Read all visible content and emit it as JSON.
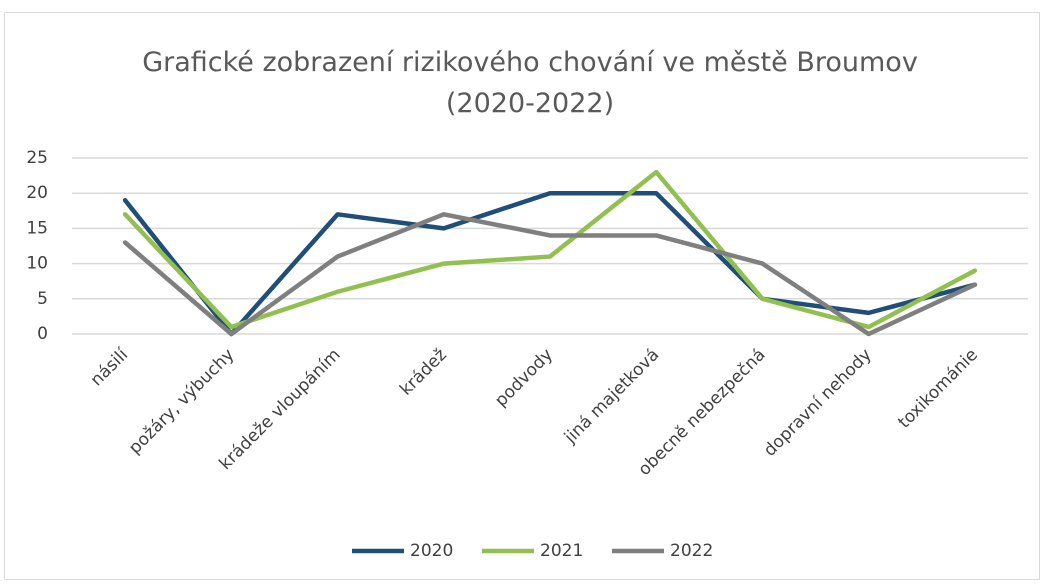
{
  "chart_data": {
    "type": "line",
    "title": "Grafické zobrazení rizikového chování ve městě Broumov (2020-2022)",
    "categories": [
      "násilí",
      "požáry, výbuchy",
      "krádeže vloupáním",
      "krádež",
      "podvody",
      "jiná majetková",
      "obecně nebezpečná",
      "dopravní nehody",
      "toxikománie"
    ],
    "series": [
      {
        "name": "2020",
        "color": "#1f4e79",
        "values": [
          19,
          0,
          17,
          15,
          20,
          20,
          5,
          3,
          7
        ]
      },
      {
        "name": "2021",
        "color": "#92c050",
        "values": [
          17,
          1,
          6,
          10,
          11,
          23,
          5,
          1,
          9
        ]
      },
      {
        "name": "2022",
        "color": "#7f7f7f",
        "values": [
          13,
          0,
          11,
          17,
          14,
          14,
          10,
          0,
          7
        ]
      }
    ],
    "ylim": [
      0,
      25
    ],
    "yticks": [
      0,
      5,
      10,
      15,
      20,
      25
    ],
    "grid": true,
    "legend": "bottom"
  }
}
